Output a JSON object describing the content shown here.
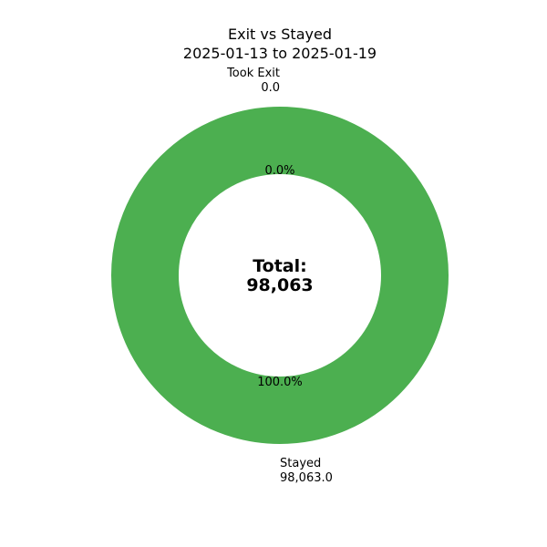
{
  "chart_data": {
    "type": "pie",
    "title": "Exit vs Stayed",
    "subtitle": "2025-01-13 to 2025-01-19",
    "donut": true,
    "categories": [
      "Took Exit",
      "Stayed"
    ],
    "values": [
      0.0,
      98063.0
    ],
    "value_labels": [
      "0.0",
      "98,063.0"
    ],
    "percent_labels": [
      "0.0%",
      "100.0%"
    ],
    "colors": [
      "#2196f3",
      "#4caf50"
    ],
    "center_label": {
      "line1": "Total:",
      "line2": "98,063"
    },
    "start_angle_deg": 90,
    "direction": "clockwise",
    "legend": "none"
  }
}
